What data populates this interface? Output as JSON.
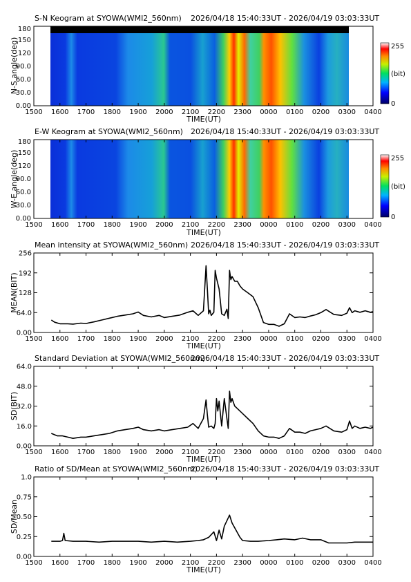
{
  "x_ticks": [
    "1500",
    "1600",
    "1700",
    "1800",
    "1900",
    "2000",
    "2100",
    "2200",
    "2300",
    "0000",
    "0100",
    "0200",
    "0300",
    "0400"
  ],
  "keograms": [
    {
      "title": "S-N Keogram at SYOWA(WMI2_560nm)",
      "time_range": "2026/04/18 15:40:33UT - 2026/04/19 03:03:33UT",
      "ylabel": "N-S angle(deg)",
      "xlabel": "TIME(UT)",
      "y_ticks": [
        "0.00",
        "30.0",
        "60.0",
        "90.0",
        "120",
        "150",
        "180"
      ],
      "colorbar": {
        "max_label": "255",
        "unit_label": "(bit)",
        "min_label": "0"
      }
    },
    {
      "title": "E-W Keogram at SYOWA(WMI2_560nm)",
      "time_range": "2026/04/18 15:40:33UT - 2026/04/19 03:03:33UT",
      "ylabel": "W-E angle(deg)",
      "xlabel": "TIME(UT)",
      "y_ticks": [
        "0.00",
        "30.0",
        "60.0",
        "90.0",
        "120",
        "150",
        "180"
      ],
      "colorbar": {
        "max_label": "255",
        "unit_label": "(bit)",
        "min_label": "0"
      }
    }
  ],
  "chart_data": [
    {
      "type": "line",
      "title": "Mean intensity at SYOWA(WMI2_560nm)",
      "time_range": "2026/04/18 15:40:33UT - 2026/04/19 03:03:33UT",
      "ylabel": "MEAN(BIT)",
      "xlabel": "TIME(UT)",
      "y_ticks": [
        "0.00",
        "64.0",
        "128",
        "192",
        "256"
      ],
      "xlim": [
        15.0,
        28.0
      ],
      "ylim": [
        0,
        256
      ],
      "x": [
        15.67,
        15.8,
        16.0,
        16.3,
        16.5,
        16.8,
        17.0,
        17.3,
        17.6,
        17.9,
        18.2,
        18.5,
        18.8,
        19.0,
        19.2,
        19.5,
        19.8,
        20.0,
        20.3,
        20.6,
        20.9,
        21.1,
        21.3,
        21.5,
        21.6,
        21.65,
        21.7,
        21.75,
        21.8,
        21.9,
        21.95,
        22.0,
        22.1,
        22.2,
        22.3,
        22.4,
        22.45,
        22.5,
        22.55,
        22.6,
        22.7,
        22.8,
        22.9,
        23.0,
        23.2,
        23.4,
        23.6,
        23.8,
        24.0,
        24.2,
        24.4,
        24.6,
        24.8,
        25.0,
        25.2,
        25.4,
        25.6,
        25.8,
        26.0,
        26.2,
        26.5,
        26.8,
        27.0,
        27.1,
        27.2,
        27.3,
        27.5,
        27.7,
        27.9,
        28.0
      ],
      "values": [
        40,
        33,
        28,
        28,
        27,
        30,
        29,
        34,
        40,
        46,
        52,
        56,
        60,
        66,
        55,
        50,
        55,
        48,
        52,
        56,
        65,
        70,
        55,
        70,
        215,
        140,
        60,
        72,
        55,
        65,
        200,
        175,
        140,
        60,
        55,
        75,
        45,
        200,
        170,
        180,
        165,
        165,
        150,
        140,
        128,
        115,
        80,
        32,
        26,
        26,
        20,
        28,
        60,
        48,
        50,
        48,
        53,
        57,
        64,
        74,
        58,
        55,
        62,
        80,
        64,
        70,
        65,
        70,
        65,
        67
      ]
    },
    {
      "type": "line",
      "title": "Standard Deviation at SYOWA(WMI2_560nm)",
      "time_range": "2026/04/18 15:40:33UT - 2026/04/19 03:03:33UT",
      "ylabel": "SD(BIT)",
      "xlabel": "TIME(UT)",
      "y_ticks": [
        "0.00",
        "16.0",
        "32.0",
        "48.0",
        "64.0"
      ],
      "xlim": [
        15.0,
        28.0
      ],
      "ylim": [
        0,
        64
      ],
      "x": [
        15.67,
        15.9,
        16.1,
        16.3,
        16.5,
        16.8,
        17.0,
        17.3,
        17.6,
        17.9,
        18.2,
        18.5,
        18.8,
        19.0,
        19.2,
        19.5,
        19.8,
        20.0,
        20.3,
        20.6,
        20.9,
        21.1,
        21.3,
        21.5,
        21.6,
        21.65,
        21.7,
        21.8,
        21.9,
        21.95,
        22.0,
        22.05,
        22.1,
        22.2,
        22.3,
        22.4,
        22.45,
        22.5,
        22.55,
        22.6,
        22.7,
        22.8,
        22.9,
        23.0,
        23.2,
        23.4,
        23.6,
        23.8,
        24.0,
        24.2,
        24.4,
        24.6,
        24.8,
        25.0,
        25.2,
        25.4,
        25.6,
        25.8,
        26.0,
        26.2,
        26.5,
        26.8,
        27.0,
        27.1,
        27.2,
        27.3,
        27.5,
        27.7,
        27.9,
        28.0
      ],
      "values": [
        10,
        8,
        8,
        7,
        6,
        7,
        7,
        8,
        9,
        10,
        12,
        13,
        14,
        15,
        13,
        12,
        13,
        12,
        13,
        14,
        15,
        18,
        14,
        22,
        37,
        25,
        15,
        16,
        14,
        18,
        38,
        28,
        36,
        16,
        38,
        22,
        14,
        44,
        35,
        38,
        32,
        30,
        28,
        26,
        22,
        18,
        12,
        8,
        7,
        7,
        6,
        8,
        14,
        11,
        11,
        10,
        12,
        13,
        14,
        16,
        12,
        11,
        13,
        20,
        14,
        16,
        14,
        15,
        14,
        15
      ]
    },
    {
      "type": "line",
      "title": "Ratio of SD/Mean at SYOWA(WMI2_560nm)",
      "time_range": "2026/04/18 15:40:33UT - 2026/04/19 03:03:33UT",
      "ylabel": "SD/Mean",
      "xlabel": "TIME(UT)",
      "y_ticks": [
        "0.00",
        "0.25",
        "0.50",
        "0.75",
        "1.0"
      ],
      "xlim": [
        15.0,
        28.0
      ],
      "ylim": [
        0,
        1.0
      ],
      "x": [
        15.67,
        16.0,
        16.1,
        16.15,
        16.2,
        16.5,
        17.0,
        17.5,
        18.0,
        18.5,
        19.0,
        19.5,
        20.0,
        20.5,
        21.0,
        21.3,
        21.5,
        21.7,
        21.9,
        22.0,
        22.1,
        22.2,
        22.3,
        22.4,
        22.5,
        22.6,
        22.7,
        22.8,
        22.9,
        23.0,
        23.3,
        23.6,
        24.0,
        24.3,
        24.6,
        25.0,
        25.3,
        25.6,
        26.0,
        26.3,
        26.6,
        27.0,
        27.3,
        27.6,
        28.0
      ],
      "values": [
        0.19,
        0.19,
        0.2,
        0.29,
        0.2,
        0.19,
        0.19,
        0.18,
        0.19,
        0.19,
        0.19,
        0.18,
        0.19,
        0.18,
        0.19,
        0.2,
        0.21,
        0.24,
        0.31,
        0.2,
        0.33,
        0.22,
        0.38,
        0.45,
        0.52,
        0.42,
        0.36,
        0.3,
        0.24,
        0.2,
        0.19,
        0.19,
        0.2,
        0.21,
        0.22,
        0.21,
        0.23,
        0.21,
        0.21,
        0.17,
        0.17,
        0.17,
        0.18,
        0.18,
        0.18
      ]
    }
  ]
}
